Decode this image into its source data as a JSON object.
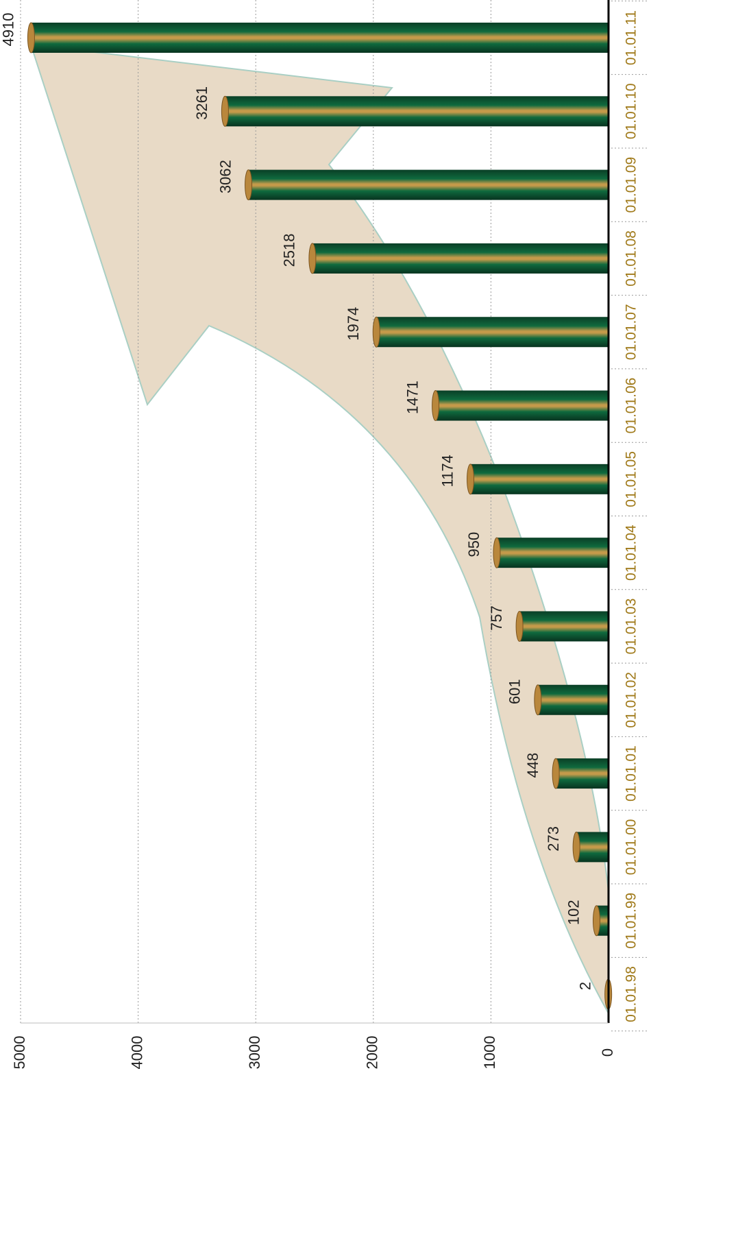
{
  "chart_data": {
    "type": "bar",
    "orientation": "horizontal",
    "categories": [
      "01.01.98",
      "01.01.99",
      "01.01.00",
      "01.01.01",
      "01.01.02",
      "01.01.03",
      "01.01.04",
      "01.01.05",
      "01.01.06",
      "01.01.07",
      "01.01.08",
      "01.01.09",
      "01.01.10",
      "01.01.11"
    ],
    "values": [
      2,
      102,
      273,
      448,
      601,
      757,
      950,
      1174,
      1471,
      1974,
      2518,
      3062,
      3261,
      4910
    ],
    "color": "#0b5a36",
    "ylim": [
      0,
      5000
    ],
    "yticks": [
      0,
      1000,
      2000,
      3000,
      4000,
      5000
    ],
    "grid": true
  }
}
